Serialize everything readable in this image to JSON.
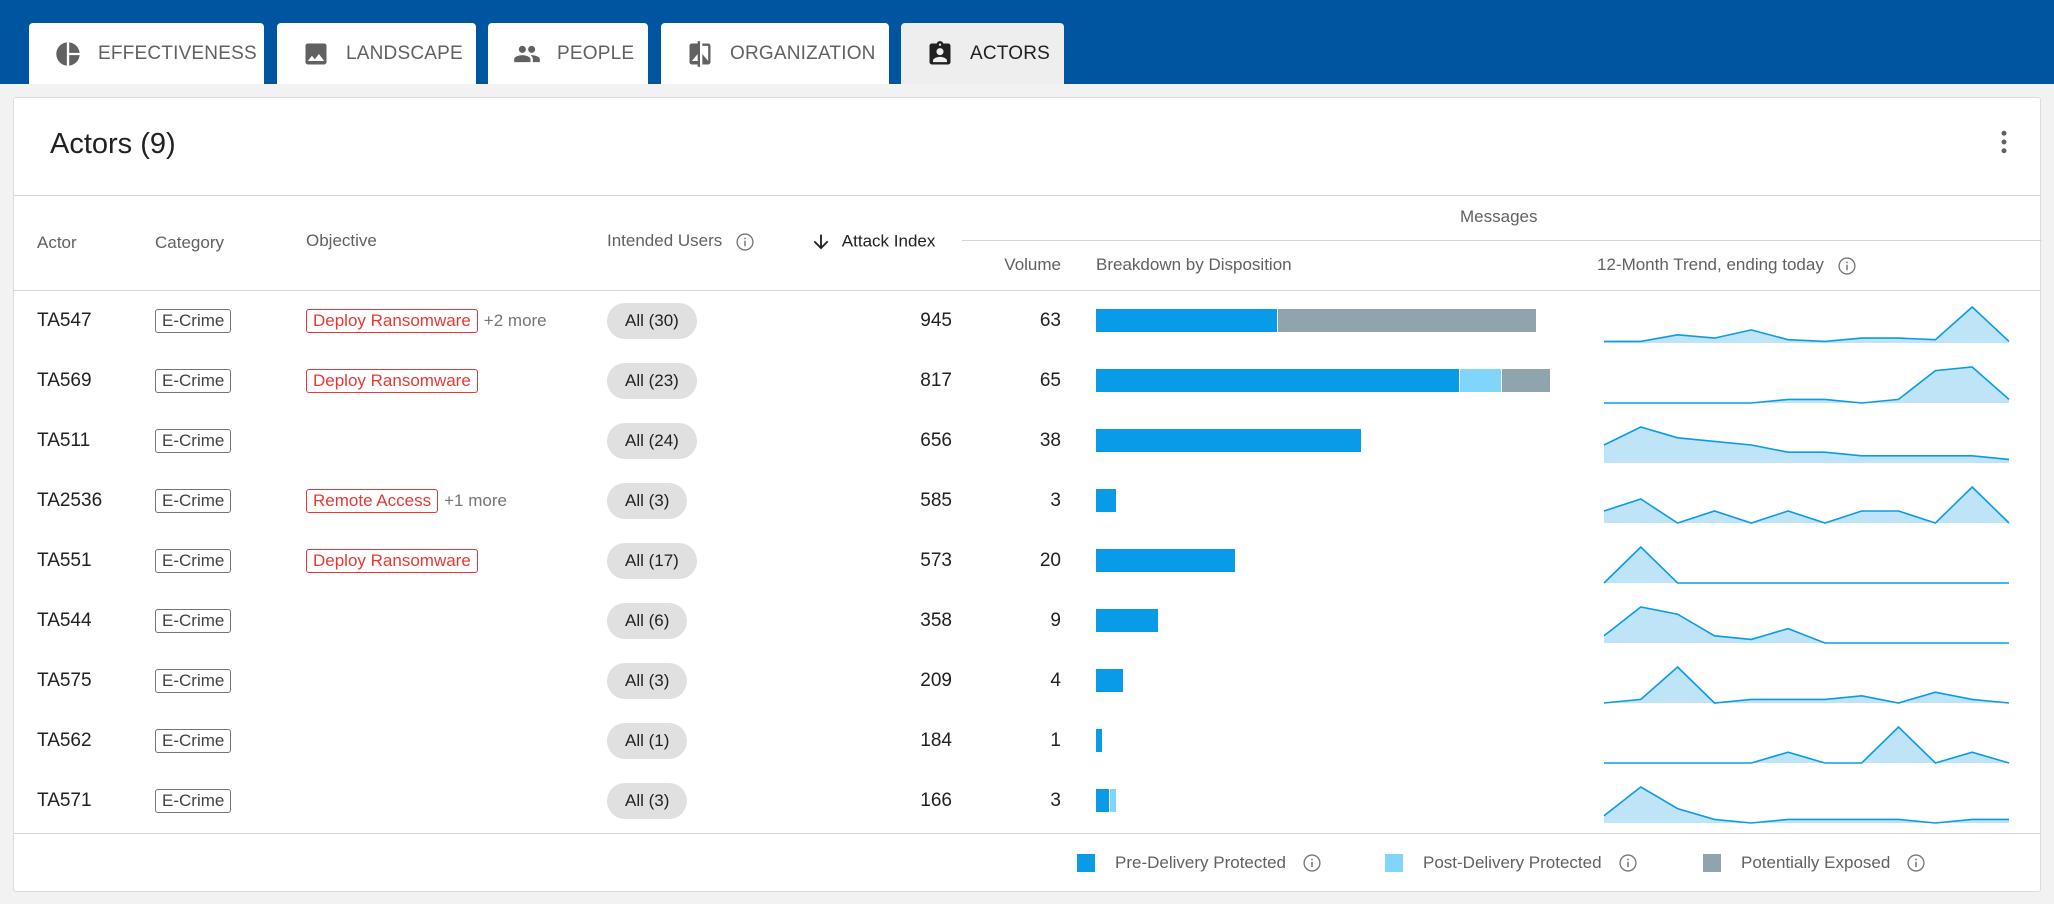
{
  "tabs": [
    {
      "label": "EFFECTIVENESS",
      "icon": "pie-chart-icon",
      "active": false
    },
    {
      "label": "LANDSCAPE",
      "icon": "image-icon",
      "active": false
    },
    {
      "label": "PEOPLE",
      "icon": "people-icon",
      "active": false
    },
    {
      "label": "ORGANIZATION",
      "icon": "compare-icon",
      "active": false
    },
    {
      "label": "ACTORS",
      "icon": "badge-icon",
      "active": true
    }
  ],
  "card": {
    "title": "Actors (9)"
  },
  "headers": {
    "actor": "Actor",
    "category": "Category",
    "objective": "Objective",
    "intended_users": "Intended Users",
    "attack_index": "Attack Index",
    "messages": "Messages",
    "volume": "Volume",
    "breakdown": "Breakdown by Disposition",
    "trend": "12-Month Trend, ending today"
  },
  "colors": {
    "pre": "#0a9be8",
    "post": "#81d4fa",
    "exposed": "#90a4ae",
    "trend_fill": "#bfe3f7",
    "trend_line": "#0a9be8"
  },
  "rows": [
    {
      "actor": "TA547",
      "category": "E-Crime",
      "objective": "Deploy Ransomware",
      "objective_more": "+2 more",
      "users": "All (30)",
      "attack_index": "945",
      "volume": "63",
      "breakdown": [
        26,
        0,
        37
      ],
      "trend": [
        1,
        1,
        5,
        3,
        8,
        2,
        1,
        3,
        3,
        2,
        22,
        1
      ]
    },
    {
      "actor": "TA569",
      "category": "E-Crime",
      "objective": "Deploy Ransomware",
      "objective_more": "",
      "users": "All (23)",
      "attack_index": "817",
      "volume": "65",
      "breakdown": [
        52,
        6,
        7
      ],
      "trend": [
        0,
        0,
        0,
        0,
        0,
        1,
        1,
        0,
        1,
        9,
        10,
        1
      ]
    },
    {
      "actor": "TA511",
      "category": "E-Crime",
      "objective": "",
      "objective_more": "",
      "users": "All (24)",
      "attack_index": "656",
      "volume": "38",
      "breakdown": [
        38,
        0,
        0
      ],
      "trend": [
        5,
        10,
        7,
        6,
        5,
        3,
        3,
        2,
        2,
        2,
        2,
        1
      ]
    },
    {
      "actor": "TA2536",
      "category": "E-Crime",
      "objective": "Remote Access",
      "objective_more": "+1 more",
      "users": "All (3)",
      "attack_index": "585",
      "volume": "3",
      "breakdown": [
        3,
        0,
        0
      ],
      "trend": [
        1,
        2,
        0,
        1,
        0,
        1,
        0,
        1,
        1,
        0,
        3,
        0
      ]
    },
    {
      "actor": "TA551",
      "category": "E-Crime",
      "objective": "Deploy Ransomware",
      "objective_more": "",
      "users": "All (17)",
      "attack_index": "573",
      "volume": "20",
      "breakdown": [
        20,
        0,
        0
      ],
      "trend": [
        0,
        10,
        0,
        0,
        0,
        0,
        0,
        0,
        0,
        0,
        0,
        0
      ]
    },
    {
      "actor": "TA544",
      "category": "E-Crime",
      "objective": "",
      "objective_more": "",
      "users": "All (6)",
      "attack_index": "358",
      "volume": "9",
      "breakdown": [
        9,
        0,
        0
      ],
      "trend": [
        2,
        10,
        8,
        2,
        1,
        4,
        0,
        0,
        0,
        0,
        0,
        0
      ]
    },
    {
      "actor": "TA575",
      "category": "E-Crime",
      "objective": "",
      "objective_more": "",
      "users": "All (3)",
      "attack_index": "209",
      "volume": "4",
      "breakdown": [
        4,
        0,
        0
      ],
      "trend": [
        0,
        1,
        10,
        0,
        1,
        1,
        1,
        2,
        0,
        3,
        1,
        0
      ]
    },
    {
      "actor": "TA562",
      "category": "E-Crime",
      "objective": "",
      "objective_more": "",
      "users": "All (1)",
      "attack_index": "184",
      "volume": "1",
      "breakdown": [
        1,
        0,
        0
      ],
      "trend": [
        0,
        0,
        0,
        0,
        0,
        3,
        0,
        0,
        10,
        0,
        3,
        0
      ]
    },
    {
      "actor": "TA571",
      "category": "E-Crime",
      "objective": "",
      "objective_more": "",
      "users": "All (3)",
      "attack_index": "166",
      "volume": "3",
      "breakdown": [
        2,
        1,
        0
      ],
      "trend": [
        2,
        10,
        4,
        1,
        0,
        1,
        1,
        1,
        1,
        0,
        1,
        1
      ]
    }
  ],
  "legend": [
    {
      "label": "Pre-Delivery Protected",
      "color": "#0a9be8"
    },
    {
      "label": "Post-Delivery Protected",
      "color": "#81d4fa"
    },
    {
      "label": "Potentially Exposed",
      "color": "#90a4ae"
    }
  ]
}
